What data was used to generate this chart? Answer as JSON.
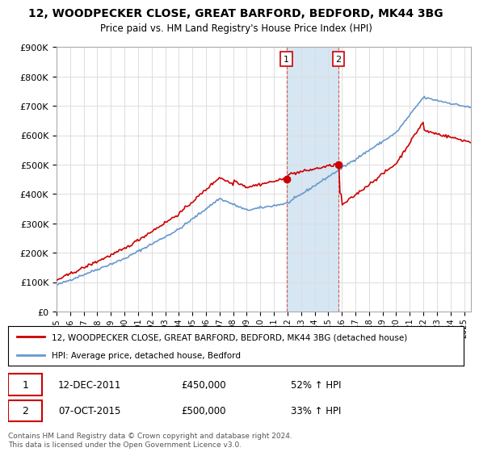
{
  "title": "12, WOODPECKER CLOSE, GREAT BARFORD, BEDFORD, MK44 3BG",
  "subtitle": "Price paid vs. HM Land Registry's House Price Index (HPI)",
  "ylim": [
    0,
    900000
  ],
  "sale1_date": "12-DEC-2011",
  "sale1_price": 450000,
  "sale1_hpi": "52% ↑ HPI",
  "sale2_date": "07-OCT-2015",
  "sale2_price": 500000,
  "sale2_hpi": "33% ↑ HPI",
  "legend_label1": "12, WOODPECKER CLOSE, GREAT BARFORD, BEDFORD, MK44 3BG (detached house)",
  "legend_label2": "HPI: Average price, detached house, Bedford",
  "footer": "Contains HM Land Registry data © Crown copyright and database right 2024.\nThis data is licensed under the Open Government Licence v3.0.",
  "line_color_red": "#cc0000",
  "line_color_blue": "#6699cc",
  "highlight_color": "#cce0f0",
  "start_year": 1995,
  "end_year": 2025,
  "sale1_year": 2011.917,
  "sale2_year": 2015.75
}
